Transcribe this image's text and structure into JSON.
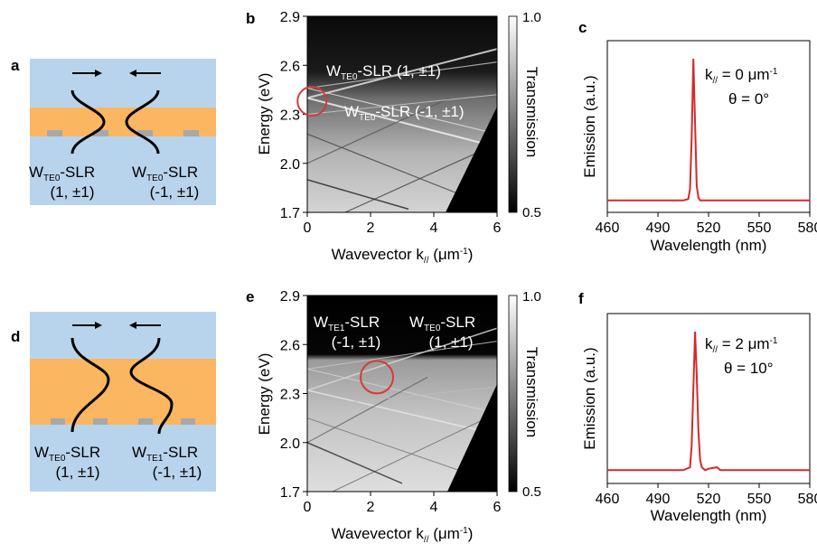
{
  "panels": {
    "a": "a",
    "b": "b",
    "c": "c",
    "d": "d",
    "e": "e",
    "f": "f"
  },
  "schematic_a": {
    "left_label": {
      "main": "W",
      "sub": "TE0",
      "suffix": "-SLR",
      "index": "(1, ±1)"
    },
    "right_label": {
      "main": "W",
      "sub": "TE0",
      "suffix": "-SLR",
      "index": "(-1, ±1)"
    }
  },
  "schematic_d": {
    "left_label": {
      "main": "W",
      "sub": "TE0",
      "suffix": "-SLR",
      "index": "(1, ±1)"
    },
    "right_label": {
      "main": "W",
      "sub": "TE1",
      "suffix": "-SLR",
      "index": "(-1, ±1)"
    }
  },
  "colors": {
    "substrate": "#b8d4ec",
    "waveguide": "#fbb662",
    "particle": "#a8a8a8",
    "emission_line": "#d42a2a",
    "circle": "#d63a3a"
  },
  "map_b": {
    "ylabel": "Energy (eV)",
    "xlabel_main": "Wavevector k",
    "xlabel_sub": "//",
    "xlabel_unit_pre": " (μm",
    "xlabel_unit_sup": "-1",
    "xlabel_unit_post": ")",
    "colorbar_label": "Transmission",
    "colorbar_ticks": [
      "1.0",
      "0.5"
    ],
    "ann1": {
      "main": "W",
      "sub": "TE0",
      "rest": "-SLR (1, ±1)"
    },
    "ann2": {
      "main": "W",
      "sub": "TE0",
      "rest": "-SLR (-1, ±1)"
    }
  },
  "map_e": {
    "ylabel": "Energy (eV)",
    "xlabel_main": "Wavevector k",
    "xlabel_sub": "//",
    "xlabel_unit_pre": " (μm",
    "xlabel_unit_sup": "-1",
    "xlabel_unit_post": ")",
    "colorbar_label": "Transmission",
    "colorbar_ticks": [
      "1.0",
      "0.5"
    ],
    "ann1": {
      "main": "W",
      "sub": "TE1",
      "rest": "-SLR",
      "index": "(-1, ±1)"
    },
    "ann2": {
      "main": "W",
      "sub": "TE0",
      "rest": "-SLR",
      "index": "(1, ±1)"
    }
  },
  "emission_c": {
    "ylabel": "Emission (a.u.)",
    "xlabel": "Wavelength (nm)",
    "ann_k": {
      "pre": "k",
      "sub": "//",
      "mid": " = 0 μm",
      "sup": "-1"
    },
    "ann_theta": "θ = 0°"
  },
  "emission_f": {
    "ylabel": "Emission (a.u.)",
    "xlabel": "Wavelength (nm)",
    "ann_k": {
      "pre": "k",
      "sub": "//",
      "mid": " = 2 μm",
      "sup": "-1"
    },
    "ann_theta": "θ = 10°"
  },
  "chart_data": [
    {
      "panel": "b",
      "type": "heatmap",
      "xlabel": "Wavevector k// (μm-1)",
      "ylabel": "Energy (eV)",
      "xlim": [
        0,
        6
      ],
      "ylim": [
        1.7,
        2.9
      ],
      "xticks": [
        "0",
        "2",
        "4",
        "6"
      ],
      "yticks": [
        "1.7",
        "2.0",
        "2.3",
        "2.6",
        "2.9"
      ],
      "colorbar": {
        "label": "Transmission",
        "range": [
          0.5,
          1.0
        ]
      },
      "annotations": [
        "WTE0-SLR (1, ±1)",
        "WTE0-SLR (-1, ±1)"
      ],
      "highlight_circle": {
        "k": 0.15,
        "energy": 2.38
      }
    },
    {
      "panel": "c",
      "type": "line",
      "xlabel": "Wavelength (nm)",
      "ylabel": "Emission (a.u.)",
      "xlim": [
        460,
        580
      ],
      "xticks": [
        "460",
        "490",
        "520",
        "550",
        "580"
      ],
      "series": [
        {
          "x": [
            460,
            490,
            505,
            508,
            509,
            510,
            511,
            512,
            513,
            514,
            515,
            518,
            530,
            550,
            580
          ],
          "y": [
            0.02,
            0.02,
            0.02,
            0.03,
            0.1,
            0.45,
            1.0,
            0.55,
            0.12,
            0.04,
            0.02,
            0.02,
            0.02,
            0.02,
            0.02
          ]
        }
      ],
      "annotations": [
        "k// = 0 μm-1",
        "θ = 0°"
      ]
    },
    {
      "panel": "e",
      "type": "heatmap",
      "xlabel": "Wavevector k// (μm-1)",
      "ylabel": "Energy (eV)",
      "xlim": [
        0,
        6
      ],
      "ylim": [
        1.7,
        2.9
      ],
      "xticks": [
        "0",
        "2",
        "4",
        "6"
      ],
      "yticks": [
        "1.7",
        "2.0",
        "2.3",
        "2.6",
        "2.9"
      ],
      "colorbar": {
        "label": "Transmission",
        "range": [
          0.5,
          1.0
        ]
      },
      "annotations": [
        "WTE1-SLR (-1, ±1)",
        "WTE0-SLR (1, ±1)"
      ],
      "highlight_circle": {
        "k": 2.2,
        "energy": 2.4
      }
    },
    {
      "panel": "f",
      "type": "line",
      "xlabel": "Wavelength (nm)",
      "ylabel": "Emission (a.u.)",
      "xlim": [
        460,
        580
      ],
      "xticks": [
        "460",
        "490",
        "520",
        "550",
        "580"
      ],
      "series": [
        {
          "x": [
            460,
            490,
            505,
            509,
            510,
            511,
            512,
            513,
            514,
            515,
            516,
            518,
            520,
            525,
            527,
            530,
            550,
            580
          ],
          "y": [
            0.03,
            0.03,
            0.03,
            0.05,
            0.2,
            0.6,
            1.0,
            0.7,
            0.3,
            0.1,
            0.05,
            0.03,
            0.04,
            0.05,
            0.03,
            0.03,
            0.03,
            0.03
          ]
        }
      ],
      "annotations": [
        "k// = 2 μm-1",
        "θ = 10°"
      ]
    }
  ]
}
